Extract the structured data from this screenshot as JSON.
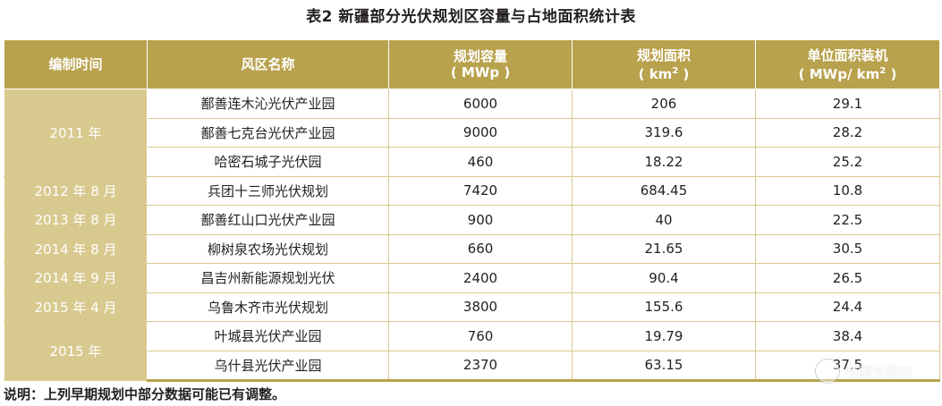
{
  "title": "表2 新疆部分光伏规划区容量与占地面积统计表",
  "columns": {
    "c1": "编制时间",
    "c2": "风区名称",
    "c3_line1": "规划容量",
    "c3_line2": "( MWp )",
    "c4_line1": "规划面积",
    "c4_line2": "( km",
    "c4_sup": "2",
    "c4_close": " )",
    "c5_line1": "单位面积装机",
    "c5_line2": "( MWp/ km",
    "c5_sup": "2",
    "c5_close": " )"
  },
  "date_groups": [
    "2011 年",
    "2012 年 8 月",
    "2013 年 8 月",
    "2014 年 8 月",
    "2014 年 9 月",
    "2015 年 4 月",
    "2015 年"
  ],
  "rows": [
    {
      "name": "鄯善连木沁光伏产业园",
      "capacity": "6000",
      "area": "206",
      "density": "29.1"
    },
    {
      "name": "鄯善七克台光伏产业园",
      "capacity": "9000",
      "area": "319.6",
      "density": "28.2"
    },
    {
      "name": "哈密石城子光伏园",
      "capacity": "460",
      "area": "18.22",
      "density": "25.2"
    },
    {
      "name": "兵团十三师光伏规划",
      "capacity": "7420",
      "area": "684.45",
      "density": "10.8"
    },
    {
      "name": "鄯善红山口光伏产业园",
      "capacity": "900",
      "area": "40",
      "density": "22.5"
    },
    {
      "name": "柳树泉农场光伏规划",
      "capacity": "660",
      "area": "21.65",
      "density": "30.5"
    },
    {
      "name": "昌吉州新能源规划光伏",
      "capacity": "2400",
      "area": "90.4",
      "density": "26.5"
    },
    {
      "name": "乌鲁木齐市光伏规划",
      "capacity": "3800",
      "area": "155.6",
      "density": "24.4"
    },
    {
      "name": "叶城县光伏产业园",
      "capacity": "760",
      "area": "19.79",
      "density": "38.4"
    },
    {
      "name": "乌什县光伏产业园",
      "capacity": "2370",
      "area": "63.15",
      "density": "37.5"
    }
  ],
  "note": "说明：上列早期规划中部分数据可能已有调整。",
  "watermark": "中国节能网"
}
